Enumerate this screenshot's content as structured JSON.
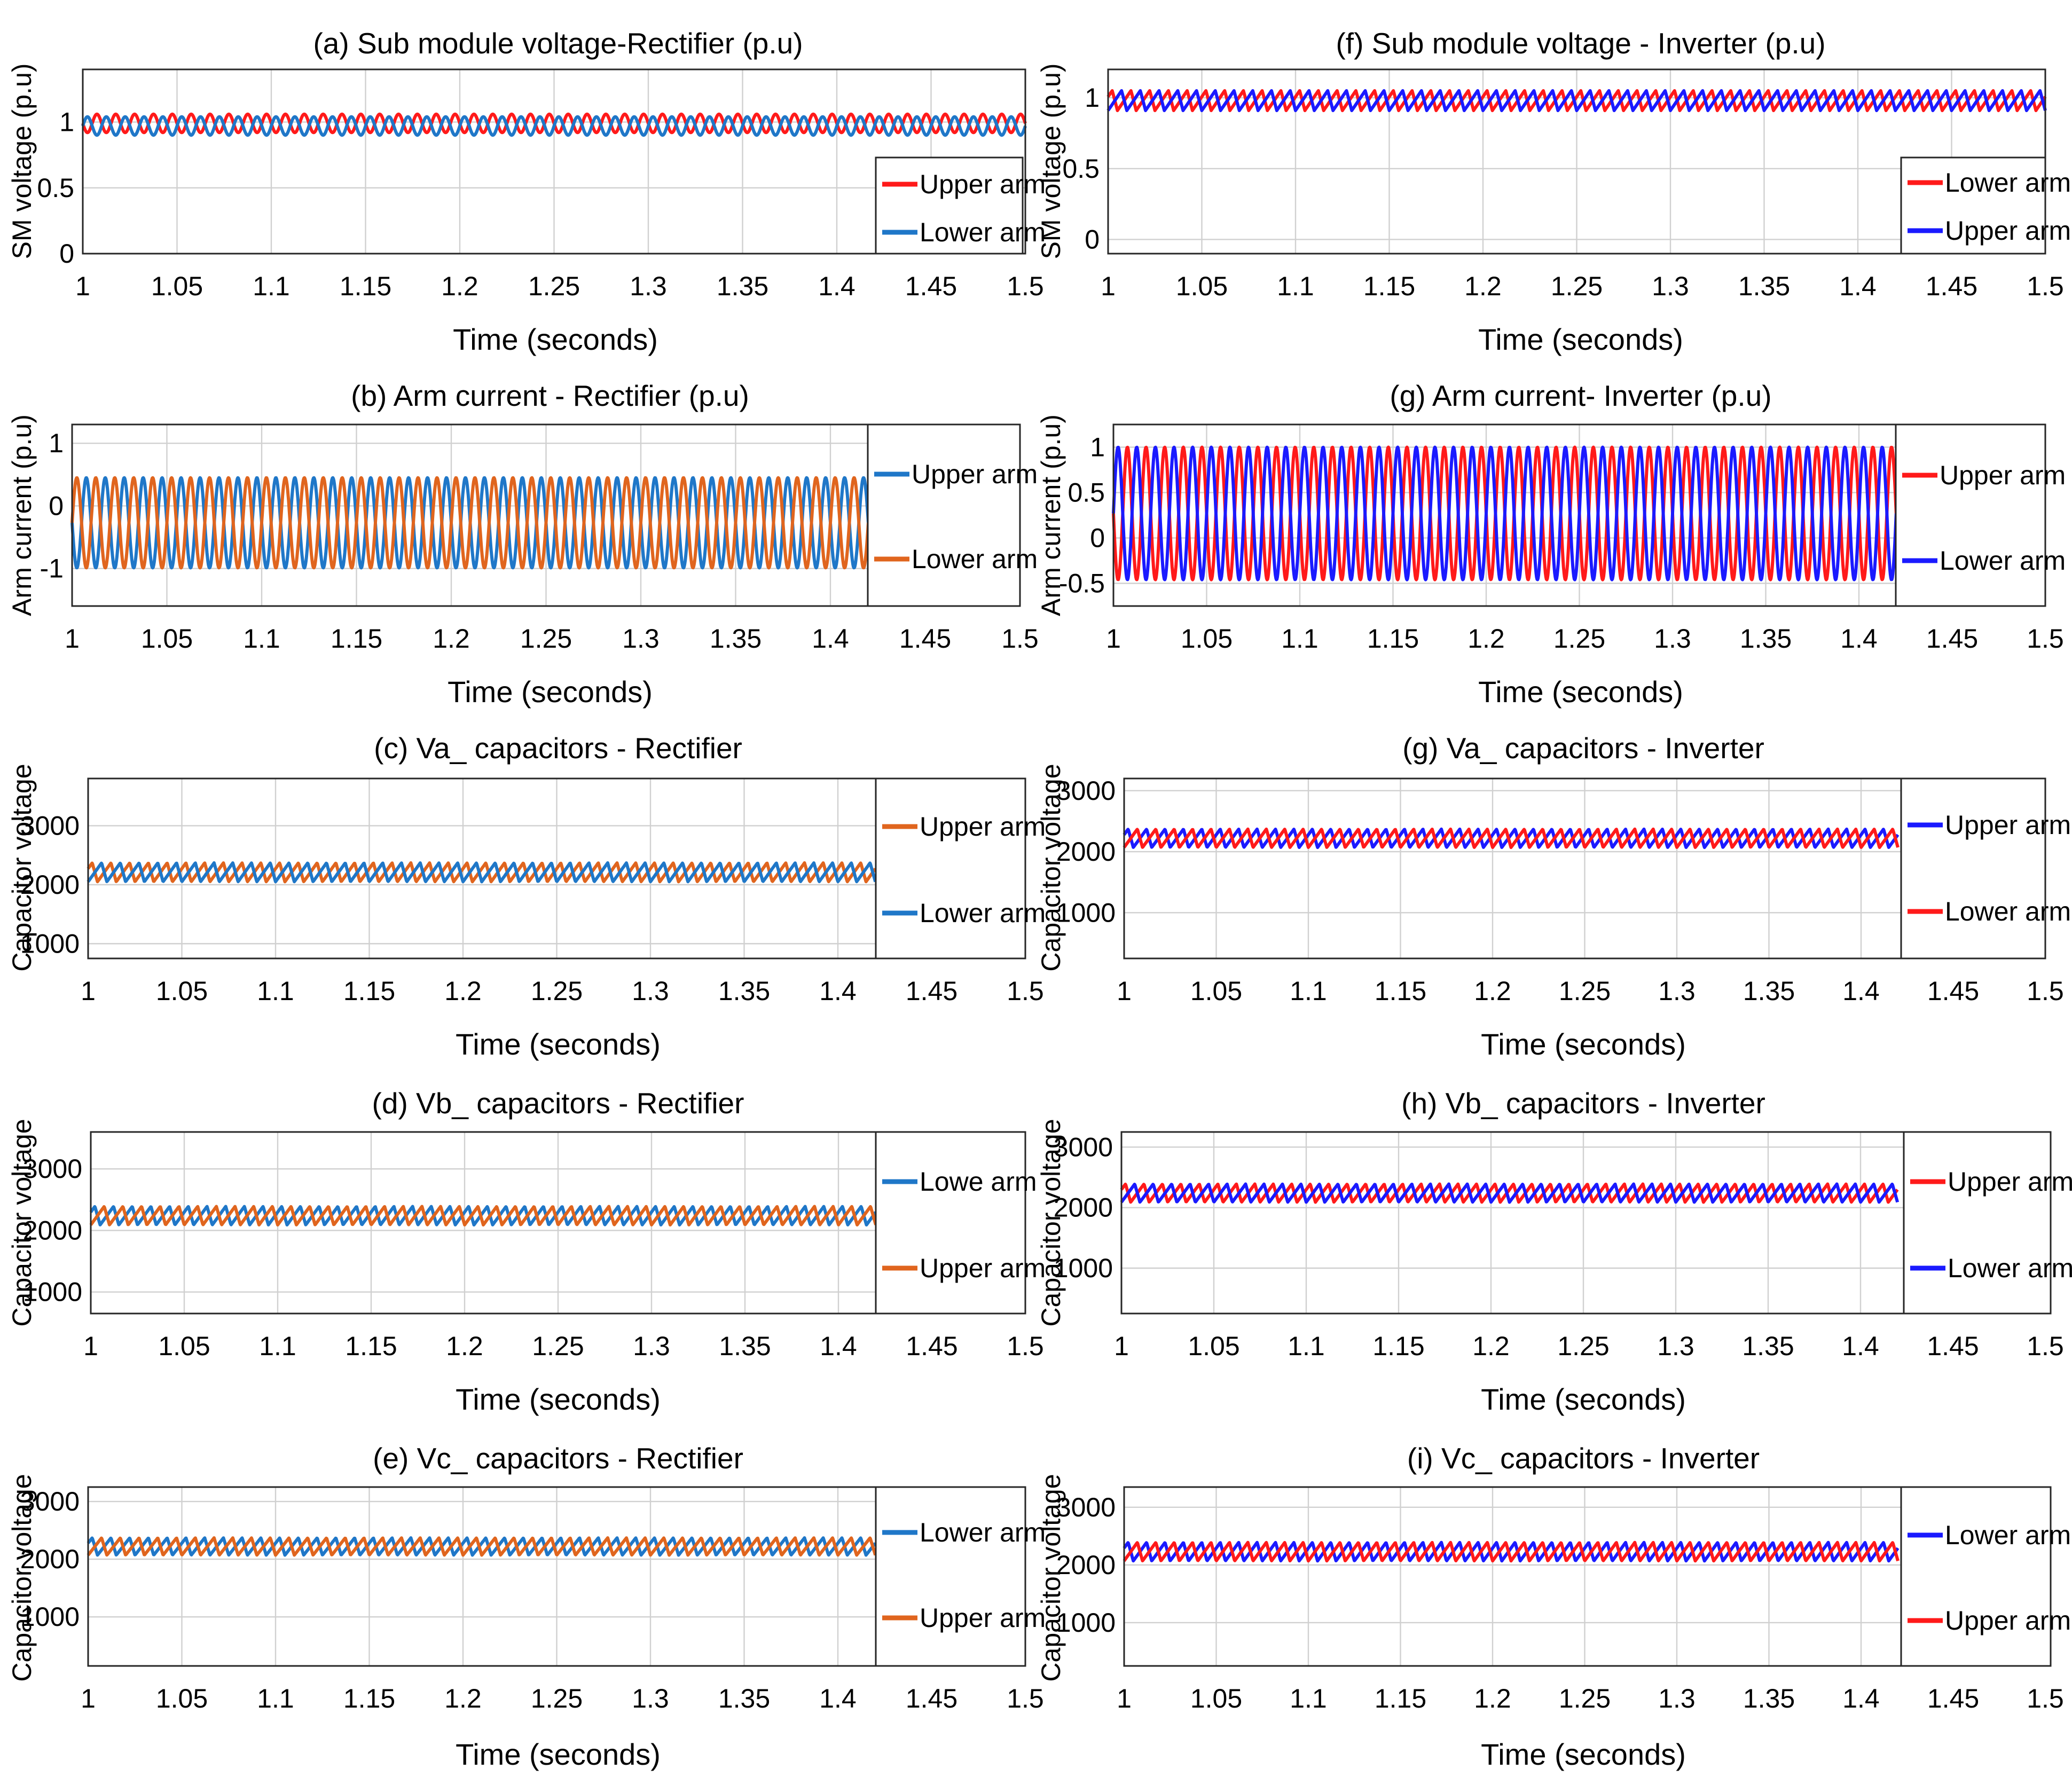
{
  "chart_data": [
    {
      "id": "a",
      "type": "line",
      "title": "(a) Sub module voltage-Rectifier (p.u)",
      "xlabel": "Time (seconds)",
      "ylabel": "SM voltage (p.u)",
      "xlim": [
        1,
        1.5
      ],
      "ylim": [
        0,
        1.4
      ],
      "yticks": [
        0,
        0.5,
        1
      ],
      "xticks": [
        1,
        1.05,
        1.1,
        1.15,
        1.2,
        1.25,
        1.3,
        1.35,
        1.4,
        1.45,
        1.5
      ],
      "grid": true,
      "legend_position": "right",
      "series": [
        {
          "name": "Upper arm",
          "color": "#ff1a1a",
          "shape": "sine",
          "mean": 0.99,
          "amplitude": 0.07,
          "period": 0.01,
          "phase": 0.5,
          "t_start": 1.0,
          "t_end": 1.5
        },
        {
          "name": "Lower arm",
          "color": "#1f77c8",
          "shape": "sine",
          "mean": 0.97,
          "amplitude": 0.07,
          "period": 0.01,
          "phase": 0.0,
          "t_start": 1.0,
          "t_end": 1.5
        }
      ]
    },
    {
      "id": "f",
      "type": "line",
      "title": "(f) Sub module voltage - Inverter (p.u)",
      "xlabel": "Time (seconds)",
      "ylabel": "SM voltage (p.u)",
      "xlim": [
        1,
        1.5
      ],
      "ylim": [
        -0.1,
        1.2
      ],
      "yticks": [
        0,
        0.5,
        1
      ],
      "xticks": [
        1,
        1.05,
        1.1,
        1.15,
        1.2,
        1.25,
        1.3,
        1.35,
        1.4,
        1.45,
        1.5
      ],
      "grid": true,
      "legend_position": "right",
      "series": [
        {
          "name": "Lower arm",
          "color": "#ff1a1a",
          "shape": "sawtooth",
          "mean": 0.98,
          "amplitude": 0.07,
          "period": 0.01,
          "phase": 0.5,
          "t_start": 1.0,
          "t_end": 1.5
        },
        {
          "name": "Upper arm",
          "color": "#1a1aff",
          "shape": "sawtooth",
          "mean": 0.98,
          "amplitude": 0.07,
          "period": 0.01,
          "phase": 0.0,
          "t_start": 1.0,
          "t_end": 1.5
        }
      ]
    },
    {
      "id": "b",
      "type": "line",
      "title": "(b) Arm current - Rectifier (p.u)",
      "xlabel": "Time (seconds)",
      "ylabel": "Arm current (p.u)",
      "xlim": [
        1,
        1.5
      ],
      "ylim": [
        -1.6,
        1.3
      ],
      "yticks": [
        -1,
        0,
        1
      ],
      "xticks": [
        1,
        1.05,
        1.1,
        1.15,
        1.2,
        1.25,
        1.3,
        1.35,
        1.4,
        1.45,
        1.5
      ],
      "grid": true,
      "legend_position": "right",
      "series": [
        {
          "name": "Upper arm",
          "color": "#1f77c8",
          "shape": "sine",
          "mean": -0.27,
          "amplitude": 0.72,
          "period": 0.01,
          "phase": 0.5,
          "t_start": 1.0,
          "t_end": 1.42
        },
        {
          "name": "Lower arm",
          "color": "#e0651e",
          "shape": "sine",
          "mean": -0.27,
          "amplitude": 0.72,
          "period": 0.01,
          "phase": 0.0,
          "t_start": 1.0,
          "t_end": 1.42
        }
      ]
    },
    {
      "id": "g1",
      "type": "line",
      "title": "(g) Arm current- Inverter (p.u)",
      "xlabel": "Time (seconds)",
      "ylabel": "Arm current (p.u)",
      "xlim": [
        1,
        1.5
      ],
      "ylim": [
        -0.75,
        1.25
      ],
      "yticks": [
        -0.5,
        0,
        0.5,
        1
      ],
      "xticks": [
        1,
        1.05,
        1.1,
        1.15,
        1.2,
        1.25,
        1.3,
        1.35,
        1.4,
        1.45,
        1.5
      ],
      "grid": true,
      "legend_position": "right",
      "series": [
        {
          "name": "Upper arm",
          "color": "#ff1a1a",
          "shape": "sine",
          "mean": 0.27,
          "amplitude": 0.73,
          "period": 0.01,
          "phase": 0.5,
          "t_start": 1.0,
          "t_end": 1.42
        },
        {
          "name": "Lower arm",
          "color": "#1a1aff",
          "shape": "sine",
          "mean": 0.27,
          "amplitude": 0.73,
          "period": 0.01,
          "phase": 0.0,
          "t_start": 1.0,
          "t_end": 1.42
        }
      ]
    },
    {
      "id": "c",
      "type": "line",
      "title": "(c) Va_ capacitors - Rectifier",
      "xlabel": "Time (seconds)",
      "ylabel": "Capacitor voltage",
      "xlim": [
        1,
        1.5
      ],
      "ylim": [
        750,
        3800
      ],
      "yticks": [
        1000,
        2000,
        3000
      ],
      "xticks": [
        1,
        1.05,
        1.1,
        1.15,
        1.2,
        1.25,
        1.3,
        1.35,
        1.4,
        1.45,
        1.5
      ],
      "grid": true,
      "legend_position": "right",
      "series": [
        {
          "name": "Upper arm",
          "color": "#e0651e",
          "shape": "sawtooth",
          "mean": 2210,
          "amplitude": 160,
          "period": 0.01,
          "phase": 0.5,
          "t_start": 1.0,
          "t_end": 1.42
        },
        {
          "name": "Lower arm",
          "color": "#1f77c8",
          "shape": "sawtooth",
          "mean": 2210,
          "amplitude": 160,
          "period": 0.01,
          "phase": 0.0,
          "t_start": 1.0,
          "t_end": 1.42
        }
      ]
    },
    {
      "id": "g2",
      "type": "line",
      "title": "(g) Va_ capacitors - Inverter",
      "xlabel": "Time (seconds)",
      "ylabel": "Capacitor voltage",
      "xlim": [
        1,
        1.5
      ],
      "ylim": [
        250,
        3200
      ],
      "yticks": [
        1000,
        2000,
        3000
      ],
      "xticks": [
        1,
        1.05,
        1.1,
        1.15,
        1.2,
        1.25,
        1.3,
        1.35,
        1.4,
        1.45,
        1.5
      ],
      "grid": true,
      "legend_position": "right",
      "series": [
        {
          "name": "Upper arm",
          "color": "#1a1aff",
          "shape": "sawtooth",
          "mean": 2220,
          "amplitude": 150,
          "period": 0.01,
          "phase": 0.5,
          "t_start": 1.0,
          "t_end": 1.42
        },
        {
          "name": "Lower arm",
          "color": "#ff1a1a",
          "shape": "sawtooth",
          "mean": 2220,
          "amplitude": 150,
          "period": 0.01,
          "phase": 0.0,
          "t_start": 1.0,
          "t_end": 1.42
        }
      ]
    },
    {
      "id": "d",
      "type": "line",
      "title": "(d) Vb_ capacitors - Rectifier",
      "xlabel": "Time (seconds)",
      "ylabel": "Capacitor voltage",
      "xlim": [
        1,
        1.5
      ],
      "ylim": [
        650,
        3600
      ],
      "yticks": [
        1000,
        2000,
        3000
      ],
      "xticks": [
        1,
        1.05,
        1.1,
        1.15,
        1.2,
        1.25,
        1.3,
        1.35,
        1.4,
        1.45,
        1.5
      ],
      "grid": true,
      "legend_position": "right",
      "series": [
        {
          "name": "Lowe arm",
          "color": "#1f77c8",
          "shape": "sawtooth",
          "mean": 2240,
          "amplitude": 150,
          "period": 0.01,
          "phase": 0.5,
          "t_start": 1.0,
          "t_end": 1.42
        },
        {
          "name": "Upper arm",
          "color": "#e0651e",
          "shape": "sawtooth",
          "mean": 2240,
          "amplitude": 150,
          "period": 0.01,
          "phase": 0.0,
          "t_start": 1.0,
          "t_end": 1.42
        }
      ]
    },
    {
      "id": "h",
      "type": "line",
      "title": "(h) Vb_ capacitors - Inverter",
      "xlabel": "Time (seconds)",
      "ylabel": "Capacitor voltage",
      "xlim": [
        1,
        1.5
      ],
      "ylim": [
        250,
        3250
      ],
      "yticks": [
        1000,
        2000,
        3000
      ],
      "xticks": [
        1,
        1.05,
        1.1,
        1.15,
        1.2,
        1.25,
        1.3,
        1.35,
        1.4,
        1.45,
        1.5
      ],
      "grid": true,
      "legend_position": "right",
      "series": [
        {
          "name": "Upper arm",
          "color": "#ff1a1a",
          "shape": "sawtooth",
          "mean": 2240,
          "amplitude": 150,
          "period": 0.01,
          "phase": 0.5,
          "t_start": 1.0,
          "t_end": 1.42
        },
        {
          "name": "Lower arm",
          "color": "#1a1aff",
          "shape": "sawtooth",
          "mean": 2240,
          "amplitude": 150,
          "period": 0.01,
          "phase": 0.0,
          "t_start": 1.0,
          "t_end": 1.42
        }
      ]
    },
    {
      "id": "e",
      "type": "line",
      "title": "(e) Vc_ capacitors - Rectifier",
      "xlabel": "Time (seconds)",
      "ylabel": "Capacitor voltage",
      "xlim": [
        1,
        1.5
      ],
      "ylim": [
        150,
        3250
      ],
      "yticks": [
        1000,
        2000,
        3000
      ],
      "xticks": [
        1,
        1.05,
        1.1,
        1.15,
        1.2,
        1.25,
        1.3,
        1.35,
        1.4,
        1.45,
        1.5
      ],
      "grid": true,
      "legend_position": "right",
      "series": [
        {
          "name": "Lower arm",
          "color": "#1f77c8",
          "shape": "sawtooth",
          "mean": 2220,
          "amplitude": 150,
          "period": 0.01,
          "phase": 0.5,
          "t_start": 1.0,
          "t_end": 1.42
        },
        {
          "name": "Upper arm",
          "color": "#e0651e",
          "shape": "sawtooth",
          "mean": 2220,
          "amplitude": 150,
          "period": 0.01,
          "phase": 0.0,
          "t_start": 1.0,
          "t_end": 1.42
        }
      ]
    },
    {
      "id": "i",
      "type": "line",
      "title": "(i) Vc_ capacitors - Inverter",
      "xlabel": "Time (seconds)",
      "ylabel": "Capacitor voltage",
      "xlim": [
        1,
        1.5
      ],
      "ylim": [
        250,
        3350
      ],
      "yticks": [
        1000,
        2000,
        3000
      ],
      "xticks": [
        1,
        1.05,
        1.1,
        1.15,
        1.2,
        1.25,
        1.3,
        1.35,
        1.4,
        1.45,
        1.5
      ],
      "grid": true,
      "legend_position": "right",
      "series": [
        {
          "name": "Lower arm",
          "color": "#1a1aff",
          "shape": "sawtooth",
          "mean": 2230,
          "amplitude": 160,
          "period": 0.01,
          "phase": 0.5,
          "t_start": 1.0,
          "t_end": 1.42
        },
        {
          "name": "Upper arm",
          "color": "#ff1a1a",
          "shape": "sawtooth",
          "mean": 2230,
          "amplitude": 160,
          "period": 0.01,
          "phase": 0.0,
          "t_start": 1.0,
          "t_end": 1.42
        }
      ]
    }
  ]
}
